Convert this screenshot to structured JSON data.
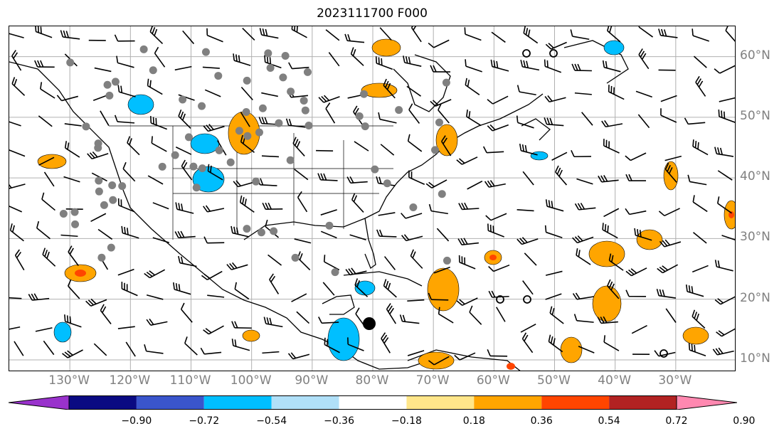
{
  "title": "2023111700 F000",
  "map": {
    "lat_range": [
      8,
      65
    ],
    "lon_range": [
      -140,
      -20
    ],
    "gridlines": true,
    "lat_labels": [
      "10°N",
      "20°N",
      "30°N",
      "40°N",
      "50°N",
      "60°N"
    ],
    "lat_values": [
      10,
      20,
      30,
      40,
      50,
      60
    ],
    "lon_labels": [
      "130°W",
      "120°W",
      "110°W",
      "100°W",
      "90°W",
      "80°W",
      "70°W",
      "60°W",
      "50°W",
      "40°W",
      "30°W"
    ],
    "lon_values": [
      -130,
      -120,
      -110,
      -100,
      -90,
      -80,
      -70,
      -60,
      -50,
      -40,
      -30
    ],
    "colors": {
      "gridline": "#b0b0b0",
      "coast": "#000000",
      "station": "#808080",
      "barb": "#000000"
    }
  },
  "colorbar": {
    "ticks": [
      "−0.90",
      "−0.72",
      "−0.54",
      "−0.36",
      "−0.18",
      "0.18",
      "0.36",
      "0.54",
      "0.72",
      "0.90"
    ],
    "under_color": "#9932cc",
    "over_color": "#ff88b0",
    "bins": [
      "#0a0a82",
      "#3a55cc",
      "#00bfff",
      "#b0e0f8",
      "#ffffff",
      "#ffe68a",
      "#ffa500",
      "#ff4500",
      "#b22222"
    ]
  }
}
